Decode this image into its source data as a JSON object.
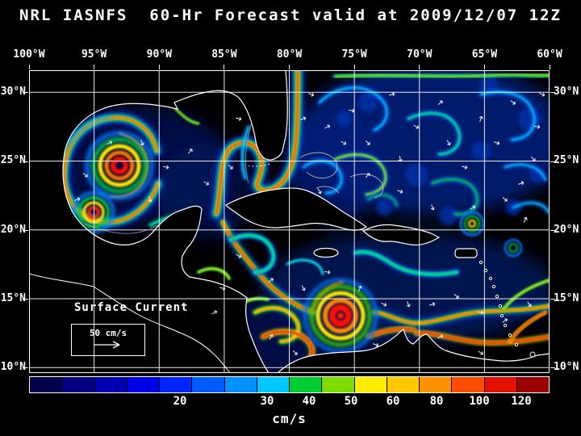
{
  "title": "NRL IASNFS  60-Hr Forecast valid at 2009/12/07 12Z",
  "map": {
    "variable": "Surface Current",
    "lon_ticks": [
      "100°W",
      "95°W",
      "90°W",
      "85°W",
      "80°W",
      "75°W",
      "70°W",
      "65°W",
      "60°W"
    ],
    "lat_ticks": [
      "30°N",
      "25°N",
      "20°N",
      "15°N",
      "10°N"
    ],
    "legend": {
      "label": "Surface Current",
      "scale_label": "50 cm/s"
    },
    "region": {
      "lon_range_deg_w": [
        100,
        60
      ],
      "lat_range_deg_n": [
        10,
        30
      ]
    },
    "background_color": "#000000",
    "grid_color": "#ffffff",
    "coast_color": "#ffffff"
  },
  "colorbar": {
    "units": "cm/s",
    "tick_labels": [
      "20",
      "30",
      "40",
      "50",
      "60",
      "80",
      "100",
      "120"
    ],
    "segment_colors": [
      "#00004d",
      "#000080",
      "#0000b3",
      "#0000e6",
      "#0026ff",
      "#005cff",
      "#0091ff",
      "#00c8ff",
      "#00cc33",
      "#7ddc00",
      "#ffee00",
      "#ffc800",
      "#ff9100",
      "#ff4d00",
      "#e31000",
      "#9b0000"
    ]
  }
}
